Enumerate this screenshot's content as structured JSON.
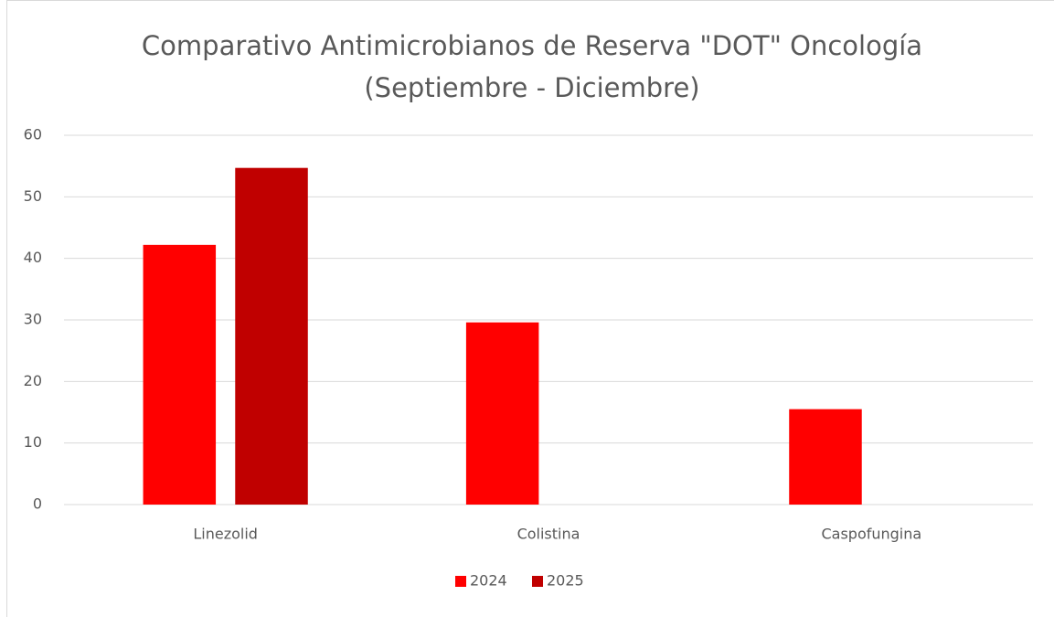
{
  "chart_data": {
    "type": "bar",
    "title": "Comparativo Antimicrobianos de Reserva \"DOT\" Oncología",
    "subtitle": "(Septiembre - Diciembre)",
    "categories": [
      "Linezolid",
      "Colistina",
      "Caspofungina"
    ],
    "series": [
      {
        "name": "2024",
        "color": "#ff0000",
        "values": [
          42.2,
          29.6,
          15.5
        ]
      },
      {
        "name": "2025",
        "color": "#c00000",
        "values": [
          54.7,
          null,
          null
        ]
      }
    ],
    "ylim": [
      0,
      60
    ],
    "yticks": [
      0,
      10,
      20,
      30,
      40,
      50,
      60
    ],
    "grid": true,
    "legend": "bottom"
  }
}
